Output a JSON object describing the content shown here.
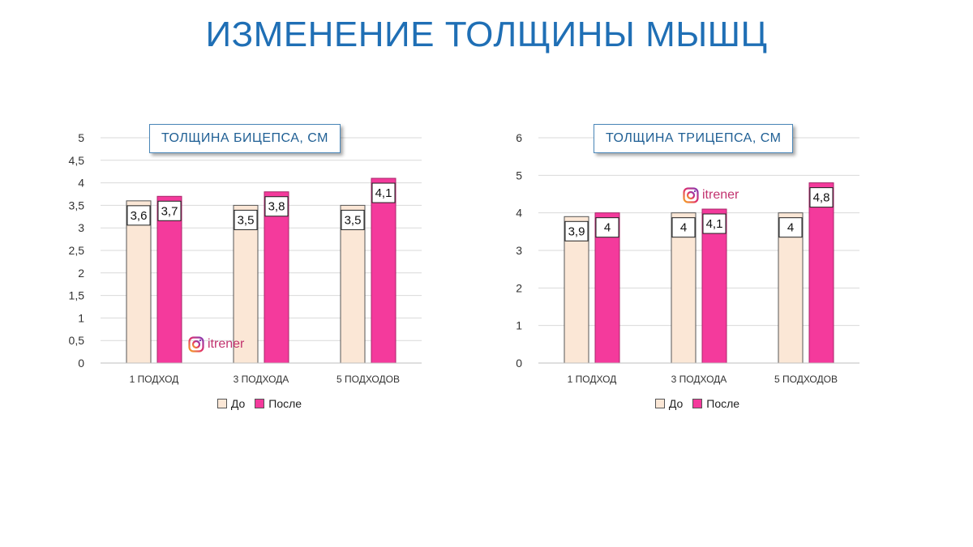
{
  "page": {
    "title": "ИЗМЕНЕНИЕ ТОЛЩИНЫ МЫШЦ",
    "watermark": "itrener"
  },
  "colors": {
    "before": "#fbe7d6",
    "after": "#f43a9c",
    "title": "#1f6fb5",
    "grid": "#d9d9d9"
  },
  "chart_data": [
    {
      "type": "bar",
      "title": "ТОЛЩИНА БИЦЕПСА, СМ",
      "categories": [
        "1 ПОДХОД",
        "3 ПОДХОДА",
        "5 ПОДХОДОВ"
      ],
      "series": [
        {
          "name": "До",
          "values": [
            3.6,
            3.5,
            3.5
          ],
          "labels": [
            "3,6",
            "3,5",
            "3,5"
          ]
        },
        {
          "name": "После",
          "values": [
            3.7,
            3.8,
            4.1
          ],
          "labels": [
            "3,7",
            "3,8",
            "4,1"
          ]
        }
      ],
      "ylim": [
        0,
        5
      ],
      "yticks": [
        "0",
        "0,5",
        "1",
        "1,5",
        "2",
        "2,5",
        "3",
        "3,5",
        "4",
        "4,5",
        "5"
      ],
      "ytick_values": [
        0,
        0.5,
        1,
        1.5,
        2,
        2.5,
        3,
        3.5,
        4,
        4.5,
        5
      ],
      "grid": true,
      "legend": "bottom"
    },
    {
      "type": "bar",
      "title": "ТОЛЩИНА ТРИЦЕПСА, СМ",
      "categories": [
        "1 ПОДХОД",
        "3 ПОДХОДА",
        "5 ПОДХОДОВ"
      ],
      "series": [
        {
          "name": "До",
          "values": [
            3.9,
            4,
            4
          ],
          "labels": [
            "3,9",
            "4",
            "4"
          ]
        },
        {
          "name": "После",
          "values": [
            4,
            4.1,
            4.8
          ],
          "labels": [
            "4",
            "4,1",
            "4,8"
          ]
        }
      ],
      "ylim": [
        0,
        6
      ],
      "yticks": [
        "0",
        "1",
        "2",
        "3",
        "4",
        "5",
        "6"
      ],
      "ytick_values": [
        0,
        1,
        2,
        3,
        4,
        5,
        6
      ],
      "grid": true,
      "legend": "bottom"
    }
  ]
}
